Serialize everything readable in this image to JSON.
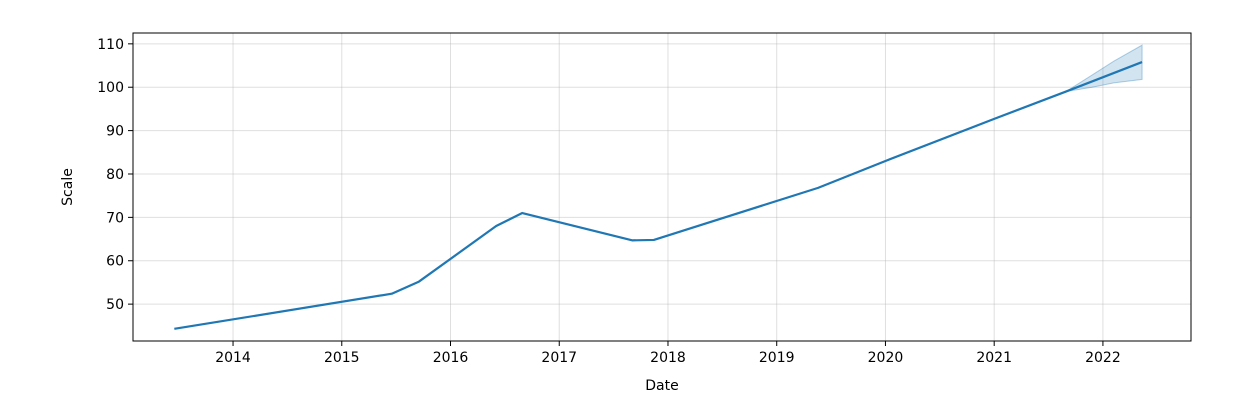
{
  "chart_data": {
    "type": "line",
    "xlabel": "Date",
    "ylabel": "Scale",
    "x_range": [
      2013.08,
      2022.81
    ],
    "ylim": [
      41.5,
      112.5
    ],
    "grid": true,
    "x_ticks": [
      {
        "value": 2014,
        "label": "2014"
      },
      {
        "value": 2015,
        "label": "2015"
      },
      {
        "value": 2016,
        "label": "2016"
      },
      {
        "value": 2017,
        "label": "2017"
      },
      {
        "value": 2018,
        "label": "2018"
      },
      {
        "value": 2019,
        "label": "2019"
      },
      {
        "value": 2020,
        "label": "2020"
      },
      {
        "value": 2021,
        "label": "2021"
      },
      {
        "value": 2022,
        "label": "2022"
      }
    ],
    "y_ticks": [
      {
        "value": 50,
        "label": "50"
      },
      {
        "value": 60,
        "label": "60"
      },
      {
        "value": 70,
        "label": "70"
      },
      {
        "value": 80,
        "label": "80"
      },
      {
        "value": 90,
        "label": "90"
      },
      {
        "value": 100,
        "label": "100"
      },
      {
        "value": 110,
        "label": "110"
      }
    ],
    "series": [
      {
        "color": "#1f77b4",
        "x": [
          2013.46,
          2015.46,
          2015.71,
          2016.42,
          2016.66,
          2017.67,
          2017.87,
          2019.38,
          2020.0,
          2021.0,
          2021.66,
          2022.36
        ],
        "y": [
          44.3,
          52.4,
          55.2,
          68.0,
          71.0,
          64.7,
          64.8,
          76.8,
          83.0,
          92.7,
          99.0,
          105.8
        ]
      }
    ],
    "uncertainty_band": {
      "color": "#1f77b4",
      "x": [
        2021.66,
        2021.9,
        2022.1,
        2022.36
      ],
      "lower": [
        99.0,
        100.0,
        101.0,
        101.8
      ],
      "upper": [
        99.0,
        102.8,
        106.0,
        109.7
      ]
    }
  }
}
